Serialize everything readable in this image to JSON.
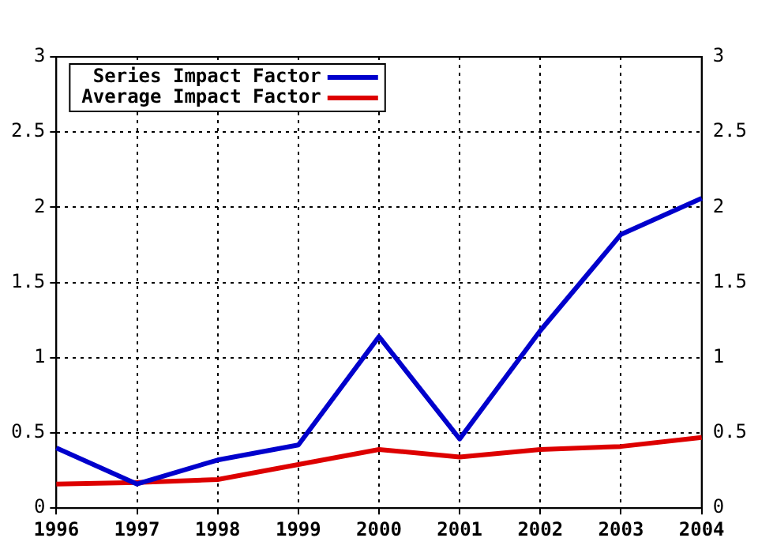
{
  "chart_data": {
    "type": "line",
    "categories": [
      "1996",
      "1997",
      "1998",
      "1999",
      "2000",
      "2001",
      "2002",
      "2003",
      "2004"
    ],
    "series": [
      {
        "name": "Series Impact Factor",
        "color": "#0000cc",
        "values": [
          0.4,
          0.16,
          0.32,
          0.42,
          1.14,
          0.46,
          1.18,
          1.82,
          2.06
        ]
      },
      {
        "name": "Average Impact Factor",
        "color": "#dd0000",
        "values": [
          0.16,
          0.17,
          0.19,
          0.29,
          0.39,
          0.34,
          0.39,
          0.41,
          0.47
        ]
      }
    ],
    "ylim": [
      0,
      3
    ],
    "yticks": [
      0,
      {
        "value": 0.5,
        "label": "0.5"
      },
      1,
      {
        "value": 1.5,
        "label": "1.5"
      },
      2,
      {
        "value": 2.5,
        "label": "2.5"
      },
      3
    ],
    "y2lim": [
      0,
      3
    ],
    "y2ticks": [
      0,
      {
        "value": 0.5,
        "label": "0.5"
      },
      1,
      {
        "value": 1.5,
        "label": "1.5"
      },
      2,
      {
        "value": 2.5,
        "label": "2.5"
      },
      3
    ],
    "grid": true,
    "legend": "top left",
    "marker": "none",
    "line_style": "solid"
  }
}
